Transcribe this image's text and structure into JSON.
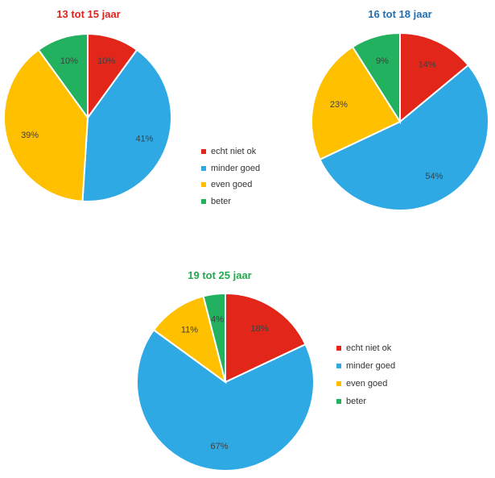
{
  "colors": {
    "echt_niet_ok": "#e3261a",
    "minder_goed": "#2fa9e4",
    "even_goed": "#ffc000",
    "beter": "#22b15e"
  },
  "chart_data": [
    {
      "type": "pie",
      "title": "13 tot 15 jaar",
      "title_color": "#d8261d",
      "categories": [
        "echt niet ok",
        "minder goed",
        "even goed",
        "beter"
      ],
      "values": [
        10,
        41,
        39,
        10
      ],
      "labels": [
        "10%",
        "41%",
        "39%",
        "10%"
      ],
      "legend": [
        "echt niet ok",
        "minder goed",
        "even goed",
        "beter"
      ]
    },
    {
      "type": "pie",
      "title": "16 tot 18 jaar",
      "title_color": "#1f6fb2",
      "categories": [
        "echt niet ok",
        "minder goed",
        "even goed",
        "beter"
      ],
      "values": [
        14,
        54,
        23,
        9
      ],
      "labels": [
        "14%",
        "54%",
        "23%",
        "9%"
      ]
    },
    {
      "type": "pie",
      "title": "19 tot 25 jaar",
      "title_color": "#22a94f",
      "categories": [
        "echt niet ok",
        "minder goed",
        "even goed",
        "beter"
      ],
      "values": [
        18,
        67,
        11,
        4
      ],
      "labels": [
        "18%",
        "67%",
        "11%",
        "4%"
      ],
      "legend": [
        "echt niet ok",
        "minder goed",
        "even goed",
        "beter"
      ]
    }
  ]
}
